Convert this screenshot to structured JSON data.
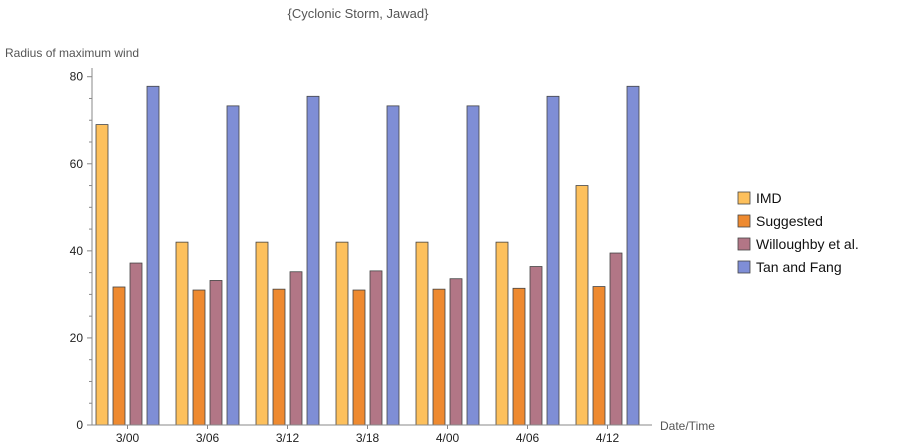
{
  "chart_data": {
    "type": "bar",
    "title": "{Cyclonic Storm, Jawad}",
    "xlabel": "Date/Time",
    "ylabel": "Radius of maximum wind",
    "categories": [
      "3/00",
      "3/06",
      "3/12",
      "3/18",
      "4/00",
      "4/06",
      "4/12"
    ],
    "ylim": [
      0,
      82
    ],
    "yticks": [
      0,
      20,
      40,
      60,
      80
    ],
    "series": [
      {
        "name": "IMD",
        "color": "#FDC05C",
        "values": [
          69,
          42,
          42,
          42,
          42,
          42,
          55
        ]
      },
      {
        "name": "Suggested",
        "color": "#EE8A30",
        "values": [
          31.7,
          31,
          31.2,
          31,
          31.2,
          31.4,
          31.8
        ]
      },
      {
        "name": "Willoughby et al.",
        "color": "#B27686",
        "values": [
          37.2,
          33.2,
          35.2,
          35.4,
          33.6,
          36.4,
          39.5
        ]
      },
      {
        "name": "Tan and Fang",
        "color": "#7F8ED6",
        "values": [
          77.8,
          73.3,
          75.5,
          73.3,
          73.3,
          75.5,
          77.8
        ]
      }
    ],
    "legend": "right",
    "grid": false
  }
}
